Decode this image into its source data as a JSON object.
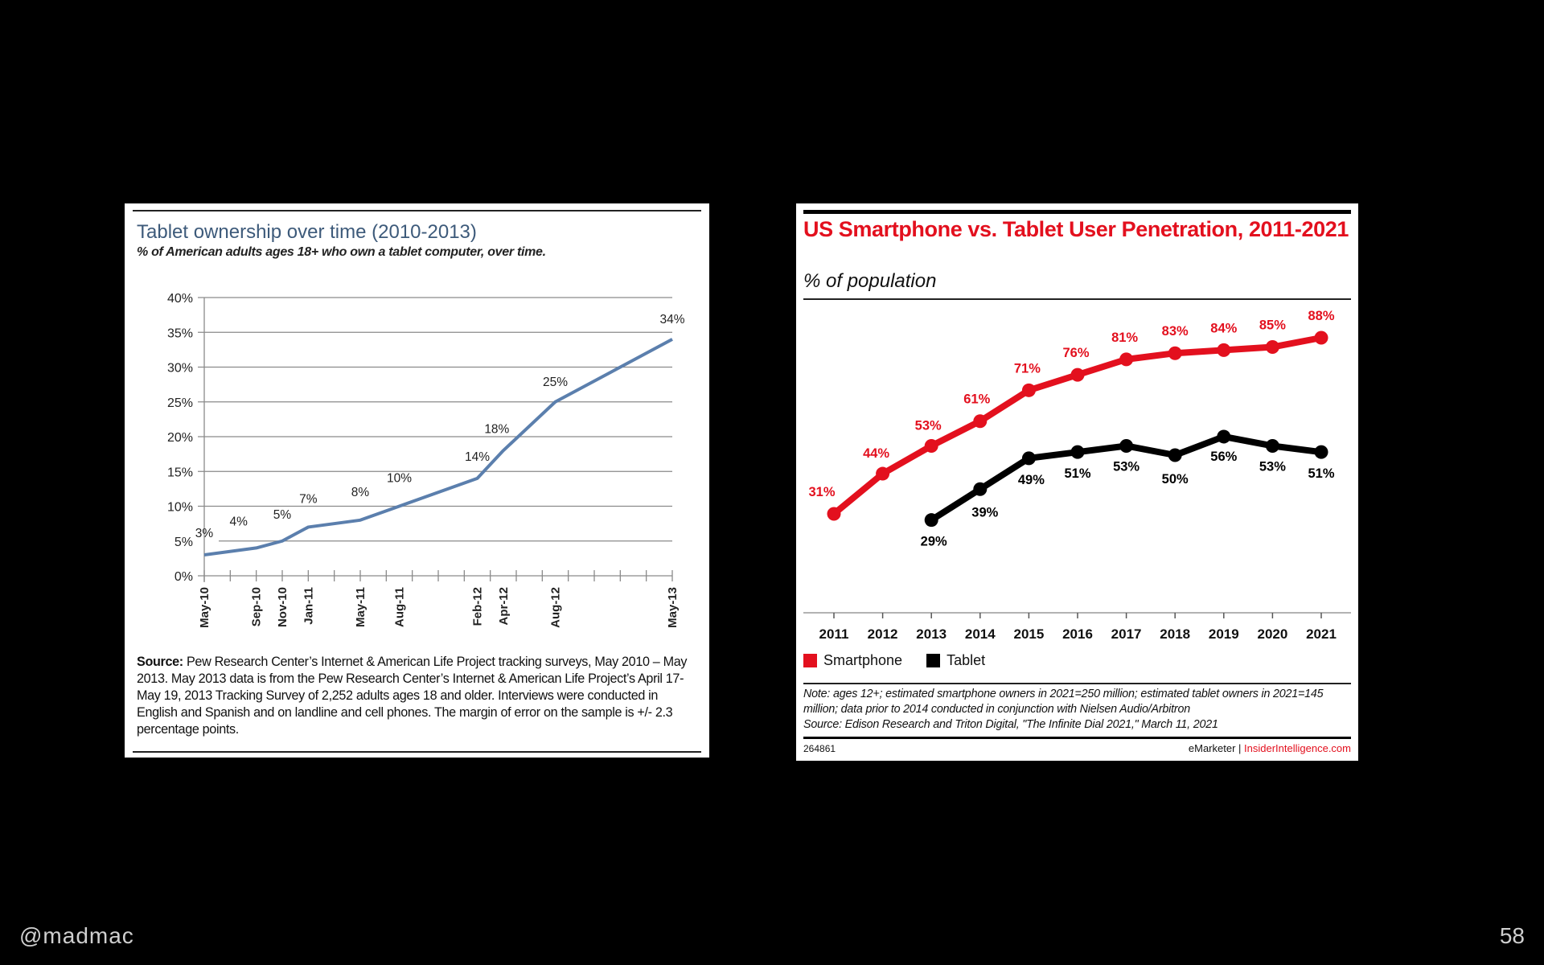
{
  "slide": {
    "handle": "@madmac",
    "page_number": "58"
  },
  "left_chart": {
    "title": "Tablet ownership over time (2010-2013)",
    "subtitle": "% of American adults ages 18+ who own a tablet computer, over time.",
    "source_label": "Source:",
    "source_text": " Pew Research Center’s Internet & American Life Project tracking surveys, May 2010 – May 2013. May 2013 data is from the Pew Research Center’s Internet & American Life Project’s April 17-May 19, 2013 Tracking Survey of 2,252 adults ages 18 and older. Interviews were conducted in English and Spanish and on landline and cell phones. The margin of error on the sample is +/- 2.3 percentage points."
  },
  "right_chart": {
    "title": "US Smartphone vs. Tablet User Penetration, 2011-2021",
    "subtitle": "% of population",
    "legend": [
      {
        "label": "Smartphone",
        "color": "#e3101e"
      },
      {
        "label": "Tablet",
        "color": "#000000"
      }
    ],
    "note": "Note: ages 12+; estimated smartphone owners in 2021=250 million; estimated tablet owners in 2021=145 million; data prior to 2014 conducted in conjunction with Nielsen Audio/Arbitron",
    "source": "Source: Edison Research and Triton Digital, \"The Infinite Dial 2021,\" March 11, 2021",
    "chart_id": "264861",
    "brand_left": "eMarketer",
    "brand_sep": " | ",
    "brand_right": "InsiderIntelligence.com"
  },
  "chart_data": [
    {
      "type": "line",
      "title": "Tablet ownership over time (2010-2013)",
      "subtitle": "% of American adults ages 18+ who own a tablet computer, over time.",
      "xlabel": "",
      "ylabel": "",
      "x_unit": "months since May 2010",
      "x": [
        "May-10",
        "Sep-10",
        "Nov-10",
        "Jan-11",
        "May-11",
        "Aug-11",
        "Feb-12",
        "Apr-12",
        "Aug-12",
        "May-13"
      ],
      "x_month_offsets": [
        0,
        4,
        6,
        8,
        12,
        15,
        21,
        23,
        27,
        36
      ],
      "series": [
        {
          "name": "Tablet ownership",
          "color": "#5b7fad",
          "values": [
            3,
            4,
            5,
            7,
            8,
            10,
            14,
            18,
            25,
            34
          ],
          "labels": [
            "3%",
            "4%",
            "5%",
            "7%",
            "8%",
            "10%",
            "14%",
            "18%",
            "25%",
            "34%"
          ]
        }
      ],
      "yticks": [
        "0%",
        "5%",
        "10%",
        "15%",
        "20%",
        "25%",
        "30%",
        "35%",
        "40%"
      ],
      "ytick_values": [
        0,
        5,
        10,
        15,
        20,
        25,
        30,
        35,
        40
      ],
      "ylim": [
        0,
        40
      ],
      "xlim_months": [
        0,
        36
      ],
      "minor_tick_every_months": 2,
      "grid": true,
      "legend": "none"
    },
    {
      "type": "line",
      "title": "US Smartphone vs. Tablet User Penetration, 2011-2021",
      "subtitle": "% of population",
      "xlabel": "",
      "ylabel": "",
      "categories": [
        "2011",
        "2012",
        "2013",
        "2014",
        "2015",
        "2016",
        "2017",
        "2018",
        "2019",
        "2020",
        "2021"
      ],
      "series": [
        {
          "name": "Smartphone",
          "color": "#e3101e",
          "values": [
            31,
            44,
            53,
            61,
            71,
            76,
            81,
            83,
            84,
            85,
            88
          ]
        },
        {
          "name": "Tablet",
          "color": "#000000",
          "values": [
            null,
            null,
            29,
            39,
            49,
            51,
            53,
            50,
            56,
            53,
            51
          ]
        }
      ],
      "label_suffix": "%",
      "grid": false,
      "legend": "bottom-left"
    }
  ]
}
